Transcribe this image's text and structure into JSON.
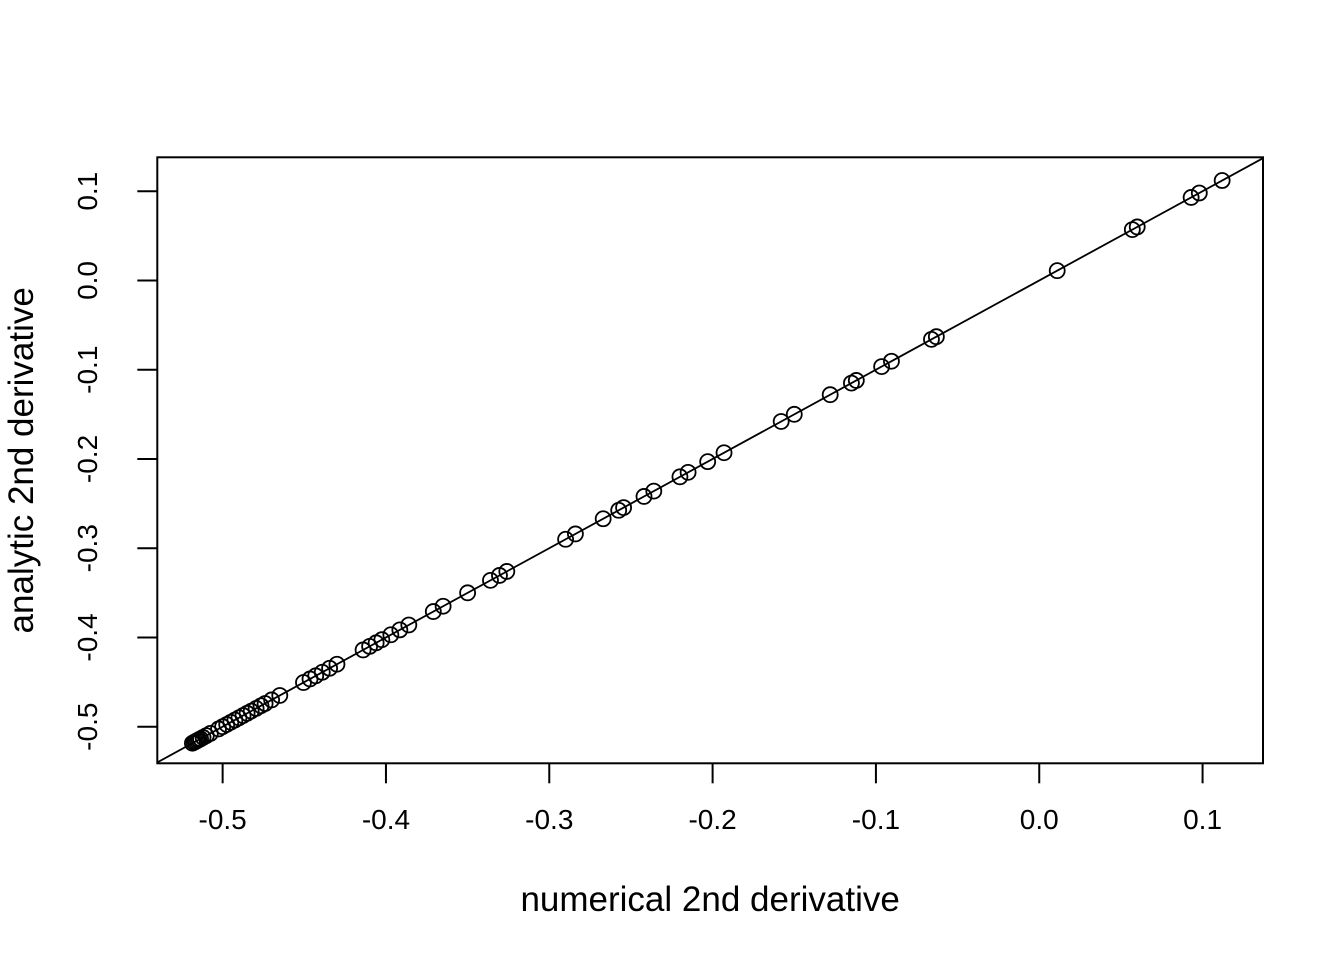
{
  "figure": {
    "background_color": "#ffffff",
    "foreground_color": "#000000"
  },
  "chart_data": {
    "type": "scatter",
    "title": "",
    "xlabel": "numerical 2nd derivative",
    "ylabel": "analytic 2nd derivative",
    "xlim": [
      -0.54,
      0.137
    ],
    "ylim": [
      -0.541,
      0.138
    ],
    "grid": false,
    "legend": "none",
    "xticks": [
      -0.5,
      -0.4,
      -0.3,
      -0.2,
      -0.1,
      0.0,
      0.1
    ],
    "xtick_labels": [
      "-0.5",
      "-0.4",
      "-0.3",
      "-0.2",
      "-0.1",
      "0.0",
      "0.1"
    ],
    "yticks": [
      -0.5,
      -0.4,
      -0.3,
      -0.2,
      -0.1,
      0.0,
      0.1
    ],
    "ytick_labels": [
      "-0.5",
      "-0.4",
      "-0.3",
      "-0.2",
      "-0.1",
      "0.0",
      "0.1"
    ],
    "marker": {
      "shape": "open-circle",
      "color": "#000000",
      "radius_px": 7.5
    },
    "reference_line": {
      "slope": 1,
      "intercept": 0,
      "description": "identity line y = x"
    },
    "points_lie_on_identity_line": true,
    "xy_values": [
      -0.5185,
      -0.5175,
      -0.5165,
      -0.5155,
      -0.5145,
      -0.5135,
      -0.512,
      -0.51,
      -0.5075,
      -0.5025,
      -0.5,
      -0.4975,
      -0.495,
      -0.4925,
      -0.49,
      -0.4875,
      -0.485,
      -0.4825,
      -0.4795,
      -0.4765,
      -0.474,
      -0.47,
      -0.465,
      -0.4505,
      -0.4465,
      -0.443,
      -0.439,
      -0.4345,
      -0.43,
      -0.414,
      -0.41,
      -0.406,
      -0.4025,
      -0.397,
      -0.3915,
      -0.386,
      -0.371,
      -0.365,
      -0.35,
      -0.336,
      -0.3305,
      -0.326,
      -0.29,
      -0.284,
      -0.267,
      -0.2575,
      -0.2545,
      -0.242,
      -0.236,
      -0.22,
      -0.215,
      -0.203,
      -0.193,
      -0.158,
      -0.15,
      -0.128,
      -0.115,
      -0.112,
      -0.0965,
      -0.0905,
      -0.066,
      -0.063,
      0.011,
      0.057,
      0.06,
      0.093,
      0.098,
      0.112
    ]
  }
}
